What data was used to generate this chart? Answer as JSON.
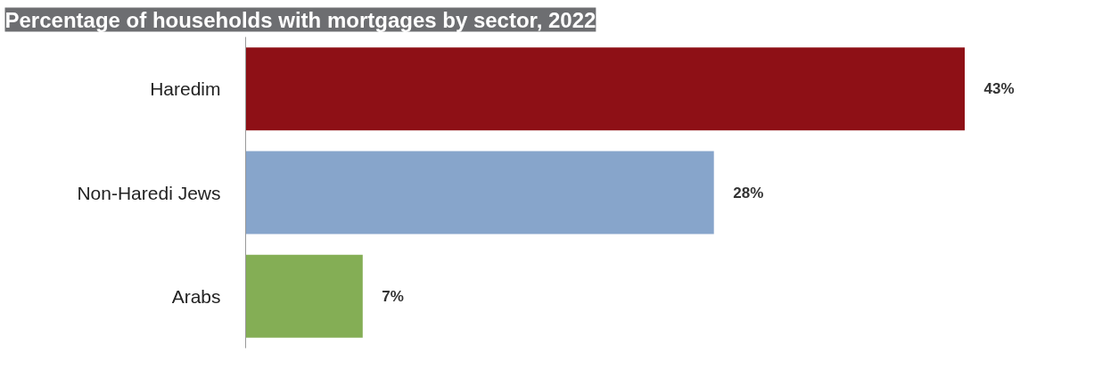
{
  "chart_data": {
    "type": "bar",
    "orientation": "horizontal",
    "title": "Percentage of households with mortgages by sector, 2022",
    "categories": [
      "Haredim",
      "Non-Haredi Jews",
      "Arabs"
    ],
    "values": [
      43,
      28,
      7
    ],
    "colors": [
      "#8e1016",
      "#87a5cb",
      "#84ae55"
    ],
    "value_labels": [
      "43%",
      "28%",
      "7%"
    ],
    "grid": false
  }
}
